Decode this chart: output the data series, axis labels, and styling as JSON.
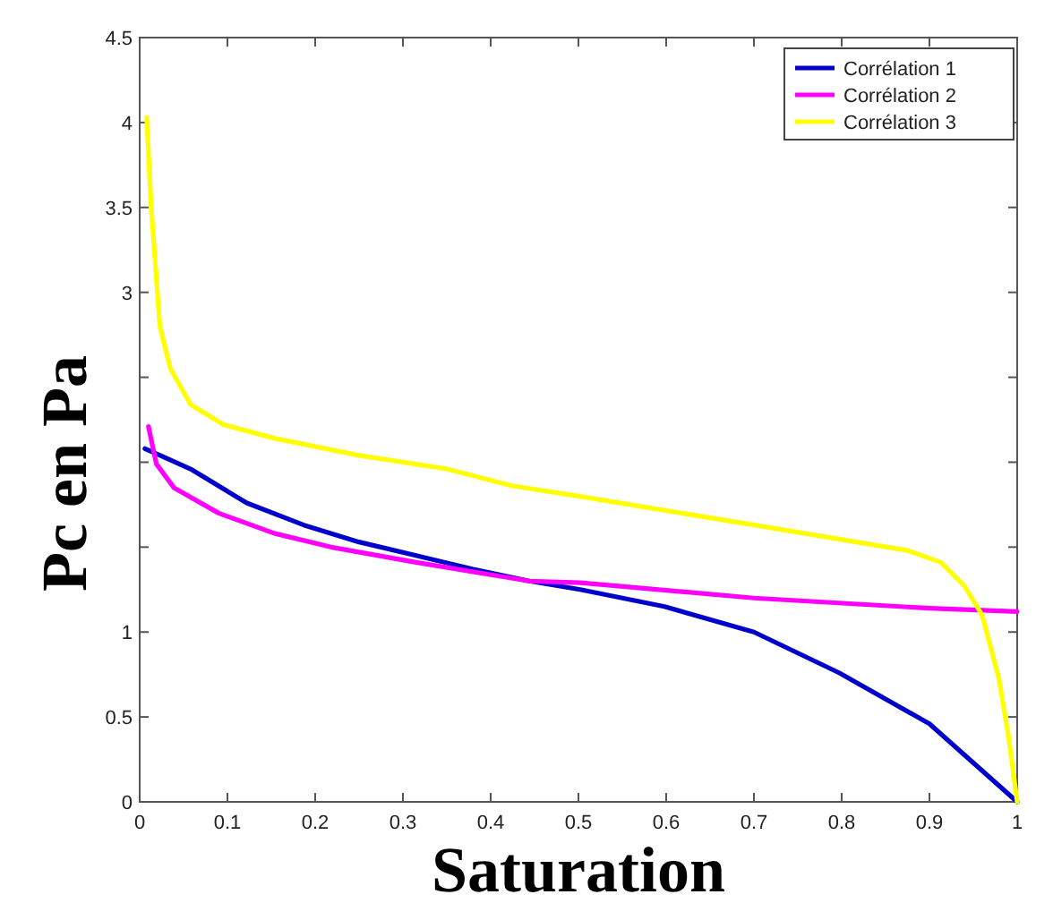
{
  "chart_data": {
    "type": "line",
    "xlabel": "Saturation",
    "ylabel": "Pc en Pa",
    "xlim": [
      0,
      1
    ],
    "ylim": [
      0,
      4.5
    ],
    "xticks": [
      0,
      0.1,
      0.2,
      0.3,
      0.4,
      0.5,
      0.6,
      0.7,
      0.8,
      0.9,
      1
    ],
    "yticks": [
      0,
      0.5,
      1,
      {
        "value": 1.5,
        "label": null
      },
      {
        "value": 2,
        "label": null
      },
      {
        "value": 2.5,
        "label": null
      },
      3,
      3.5,
      4,
      4.5
    ],
    "grid": false,
    "legend": "top right",
    "marker": "none",
    "line_style": "solid",
    "series": [
      {
        "name": "Corrélation 1",
        "color": "#0000cc",
        "x": [
          0.006,
          0.058,
          0.122,
          0.187,
          0.25,
          0.315,
          0.38,
          0.444,
          0.502,
          0.598,
          0.7,
          0.797,
          0.9,
          1.0
        ],
        "values": [
          2.08,
          1.96,
          1.76,
          1.63,
          1.53,
          1.45,
          1.37,
          1.3,
          1.25,
          1.15,
          1.0,
          0.76,
          0.46,
          0
        ]
      },
      {
        "name": "Corrélation 2",
        "color": "#ff00ff",
        "x": [
          0.01,
          0.019,
          0.039,
          0.09,
          0.154,
          0.218,
          0.315,
          0.444,
          0.502,
          0.7,
          0.9,
          1.0
        ],
        "values": [
          2.21,
          1.99,
          1.85,
          1.7,
          1.58,
          1.5,
          1.41,
          1.3,
          1.29,
          1.2,
          1.14,
          1.12
        ]
      },
      {
        "name": "Corrélation 3",
        "color": "#ffff00",
        "x": [
          0.008,
          0.013,
          0.023,
          0.035,
          0.058,
          0.096,
          0.154,
          0.25,
          0.35,
          0.425,
          0.5,
          0.7,
          0.875,
          0.913,
          0.94,
          0.96,
          0.979,
          0.99,
          1.0
        ],
        "values": [
          4.03,
          3.51,
          2.8,
          2.55,
          2.34,
          2.22,
          2.14,
          2.04,
          1.96,
          1.86,
          1.8,
          1.63,
          1.48,
          1.41,
          1.27,
          1.1,
          0.73,
          0.39,
          0
        ]
      }
    ]
  }
}
